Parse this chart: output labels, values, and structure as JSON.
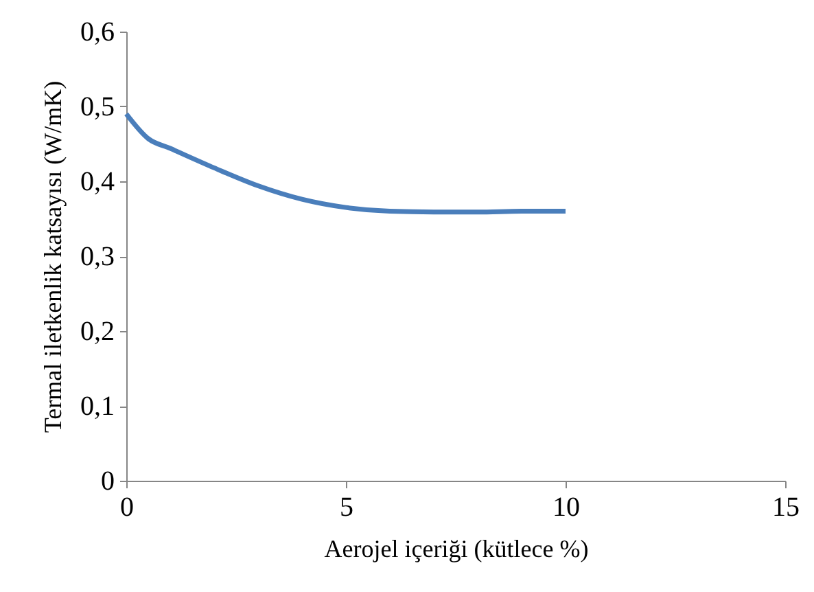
{
  "chart_data": {
    "type": "line",
    "xlabel": "Aerojel içeriği (kütlece %)",
    "ylabel": "Termal iletkenlik katsayısı (W/mK)",
    "x": [
      0,
      0.5,
      1,
      2,
      3,
      4,
      5,
      6,
      7,
      8,
      9,
      10
    ],
    "series": [
      {
        "color": "#4a7ebb",
        "values": [
          0.49,
          0.457,
          0.444,
          0.418,
          0.394,
          0.376,
          0.365,
          0.36,
          0.359,
          0.359,
          0.36,
          0.36
        ]
      }
    ],
    "xlim": [
      0,
      15
    ],
    "xticks": [
      0,
      5,
      10,
      15
    ],
    "ylim": [
      0,
      0.6
    ],
    "yticks": [
      0,
      {
        "value": 0.1,
        "label": "0,1"
      },
      {
        "value": 0.2,
        "label": "0,2"
      },
      {
        "value": 0.3,
        "label": "0,3"
      },
      {
        "value": 0.4,
        "label": "0,4"
      },
      {
        "value": 0.5,
        "label": "0,5"
      },
      {
        "value": 0.6,
        "label": "0,6"
      }
    ],
    "grid": false,
    "legend": false,
    "marker": "none",
    "line_style": "solid"
  }
}
